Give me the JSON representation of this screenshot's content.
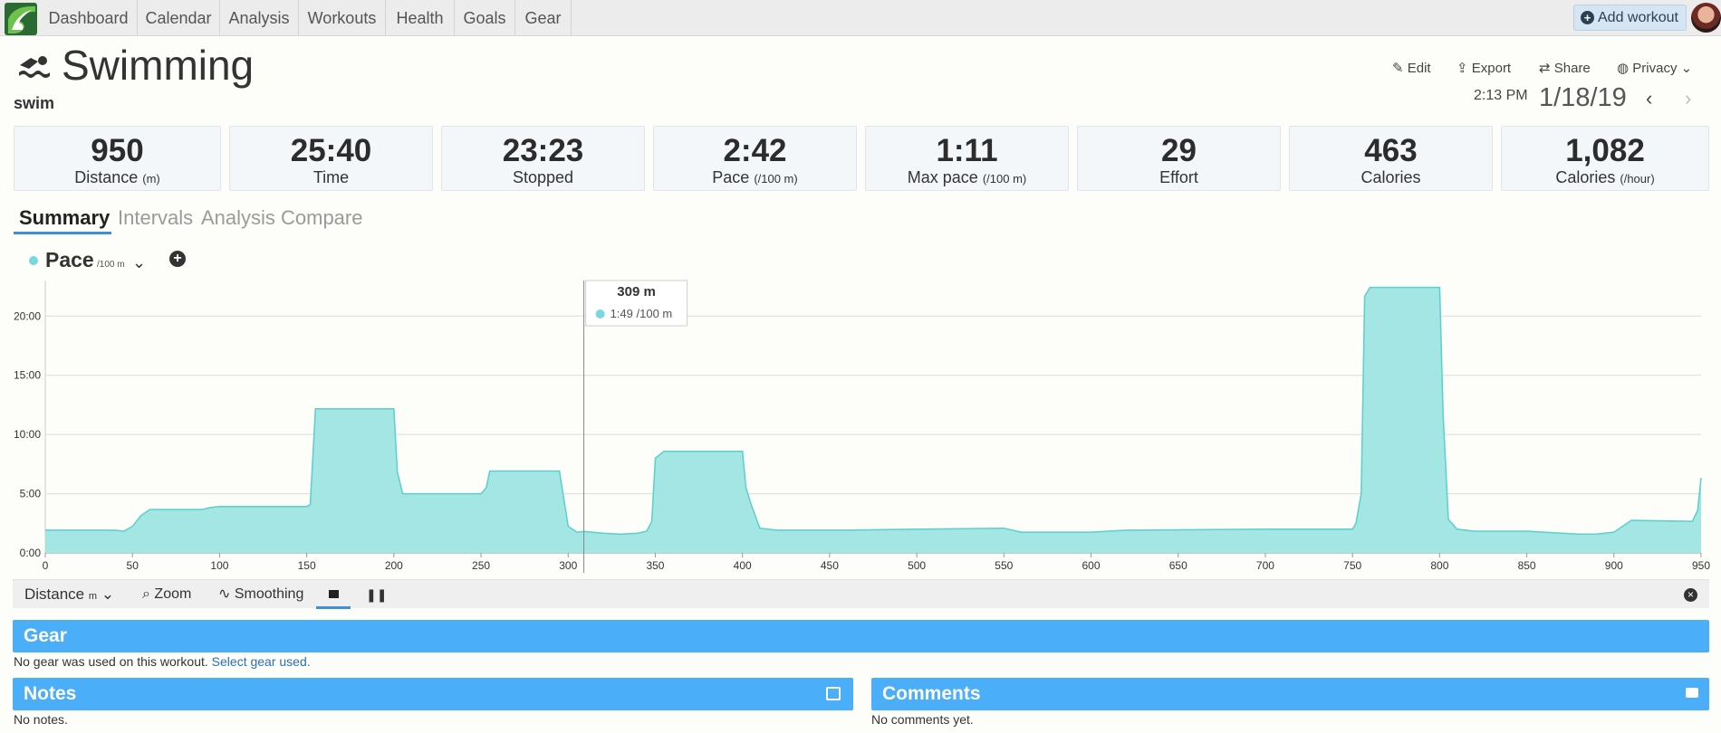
{
  "nav": {
    "items": [
      "Dashboard",
      "Calendar",
      "Analysis",
      "Workouts",
      "Health",
      "Goals",
      "Gear"
    ],
    "add_workout": "Add workout"
  },
  "header": {
    "title": "Swimming",
    "subtitle": "swim",
    "actions": {
      "edit": "Edit",
      "export": "Export",
      "share": "Share",
      "privacy": "Privacy"
    },
    "time": "2:13 PM",
    "date": "1/18/19"
  },
  "stats": [
    {
      "value": "950",
      "label": "Distance",
      "unit": "(m)"
    },
    {
      "value": "25:40",
      "label": "Time",
      "unit": ""
    },
    {
      "value": "23:23",
      "label": "Stopped",
      "unit": ""
    },
    {
      "value": "2:42",
      "label": "Pace",
      "unit": "(/100 m)"
    },
    {
      "value": "1:11",
      "label": "Max pace",
      "unit": "(/100 m)"
    },
    {
      "value": "29",
      "label": "Effort",
      "unit": ""
    },
    {
      "value": "463",
      "label": "Calories",
      "unit": ""
    },
    {
      "value": "1,082",
      "label": "Calories",
      "unit": "(/hour)"
    }
  ],
  "tabs": [
    "Summary",
    "Intervals",
    "Analysis",
    "Compare"
  ],
  "metric": {
    "label": "Pace",
    "unit": "/100 m"
  },
  "tooltip": {
    "title": "309 m",
    "value": "1:49 /100 m"
  },
  "toolbar": {
    "x_axis": "Distance",
    "x_unit": "m",
    "zoom": "Zoom",
    "smoothing": "Smoothing"
  },
  "sections": {
    "gear_title": "Gear",
    "gear_text": "No gear was used on this workout.",
    "gear_link": "Select gear used.",
    "notes_title": "Notes",
    "notes_text": "No notes.",
    "comments_title": "Comments",
    "comments_text": "No comments yet."
  },
  "colors": {
    "fill": "#a3e6e3",
    "stroke": "#5ad0cd",
    "accent": "#4aaef8",
    "nav_bg": "#ececec"
  },
  "chart_data": {
    "type": "area",
    "xlabel": "",
    "ylabel": "",
    "xlim": [
      0,
      950
    ],
    "ylim": [
      0,
      1380
    ],
    "x_ticks": [
      0,
      50,
      100,
      150,
      200,
      250,
      300,
      350,
      400,
      450,
      500,
      550,
      600,
      650,
      700,
      750,
      800,
      850,
      900,
      950
    ],
    "y_ticks": [
      {
        "v": 0,
        "label": "0:00"
      },
      {
        "v": 300,
        "label": "5:00"
      },
      {
        "v": 600,
        "label": "10:00"
      },
      {
        "v": 900,
        "label": "15:00"
      },
      {
        "v": 1200,
        "label": "20:00"
      }
    ],
    "series": [
      {
        "x": [
          0,
          40,
          45,
          50,
          55,
          60,
          90,
          95,
          100,
          150,
          152,
          155,
          200,
          202,
          205,
          250,
          253,
          255,
          295,
          300,
          305,
          309,
          320,
          330,
          340,
          345,
          348,
          350,
          355,
          400,
          402,
          405,
          410,
          420,
          460,
          500,
          550,
          560,
          600,
          620,
          700,
          750,
          752,
          755,
          757,
          760,
          800,
          802,
          805,
          810,
          820,
          850,
          870,
          880,
          890,
          900,
          910,
          945,
          948,
          950
        ],
        "y": [
          115,
          115,
          110,
          135,
          190,
          220,
          220,
          230,
          235,
          235,
          245,
          730,
          730,
          410,
          300,
          300,
          330,
          415,
          415,
          135,
          105,
          109,
          100,
          95,
          100,
          110,
          160,
          480,
          515,
          515,
          330,
          245,
          125,
          115,
          115,
          120,
          125,
          105,
          105,
          115,
          120,
          120,
          150,
          300,
          1300,
          1345,
          1345,
          700,
          170,
          120,
          110,
          110,
          100,
          95,
          95,
          105,
          165,
          160,
          215,
          380
        ]
      }
    ],
    "hover": {
      "x": 309,
      "label": "309 m",
      "value": "1:49 /100 m"
    }
  }
}
